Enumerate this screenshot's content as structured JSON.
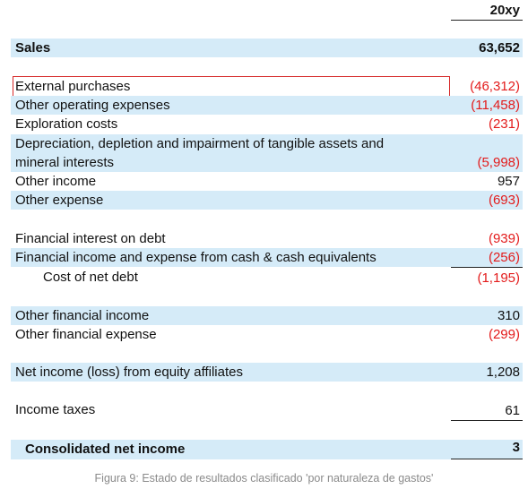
{
  "header": {
    "column": "20xy"
  },
  "rows": [
    {
      "label": "Sales",
      "value": "63,652"
    },
    {
      "label": "External purchases",
      "value": "(46,312)"
    },
    {
      "label": "Other operating expenses",
      "value": "(11,458)"
    },
    {
      "label": "Exploration costs",
      "value": "(231)"
    },
    {
      "label": "Depreciation, depletion and impairment of tangible assets and mineral interests",
      "value": "(5,998)"
    },
    {
      "label": "Other income",
      "value": "957"
    },
    {
      "label": "Other expense",
      "value": "(693)"
    },
    {
      "label": "Financial interest on debt",
      "value": "(939)"
    },
    {
      "label": "Financial income and expense from cash & cash equivalents",
      "value": "(256)"
    },
    {
      "label": "Cost of net debt",
      "value": "(1,195)"
    },
    {
      "label": "Other financial income",
      "value": "310"
    },
    {
      "label": "Other financial expense",
      "value": "(299)"
    },
    {
      "label": "Net income (loss) from equity affiliates",
      "value": "1,208"
    },
    {
      "label": "Income taxes",
      "value": "61"
    },
    {
      "label": "Consolidated net income",
      "value": "3"
    }
  ],
  "caption": "Figura 9: Estado de resultados clasificado 'por naturaleza de gastos'"
}
